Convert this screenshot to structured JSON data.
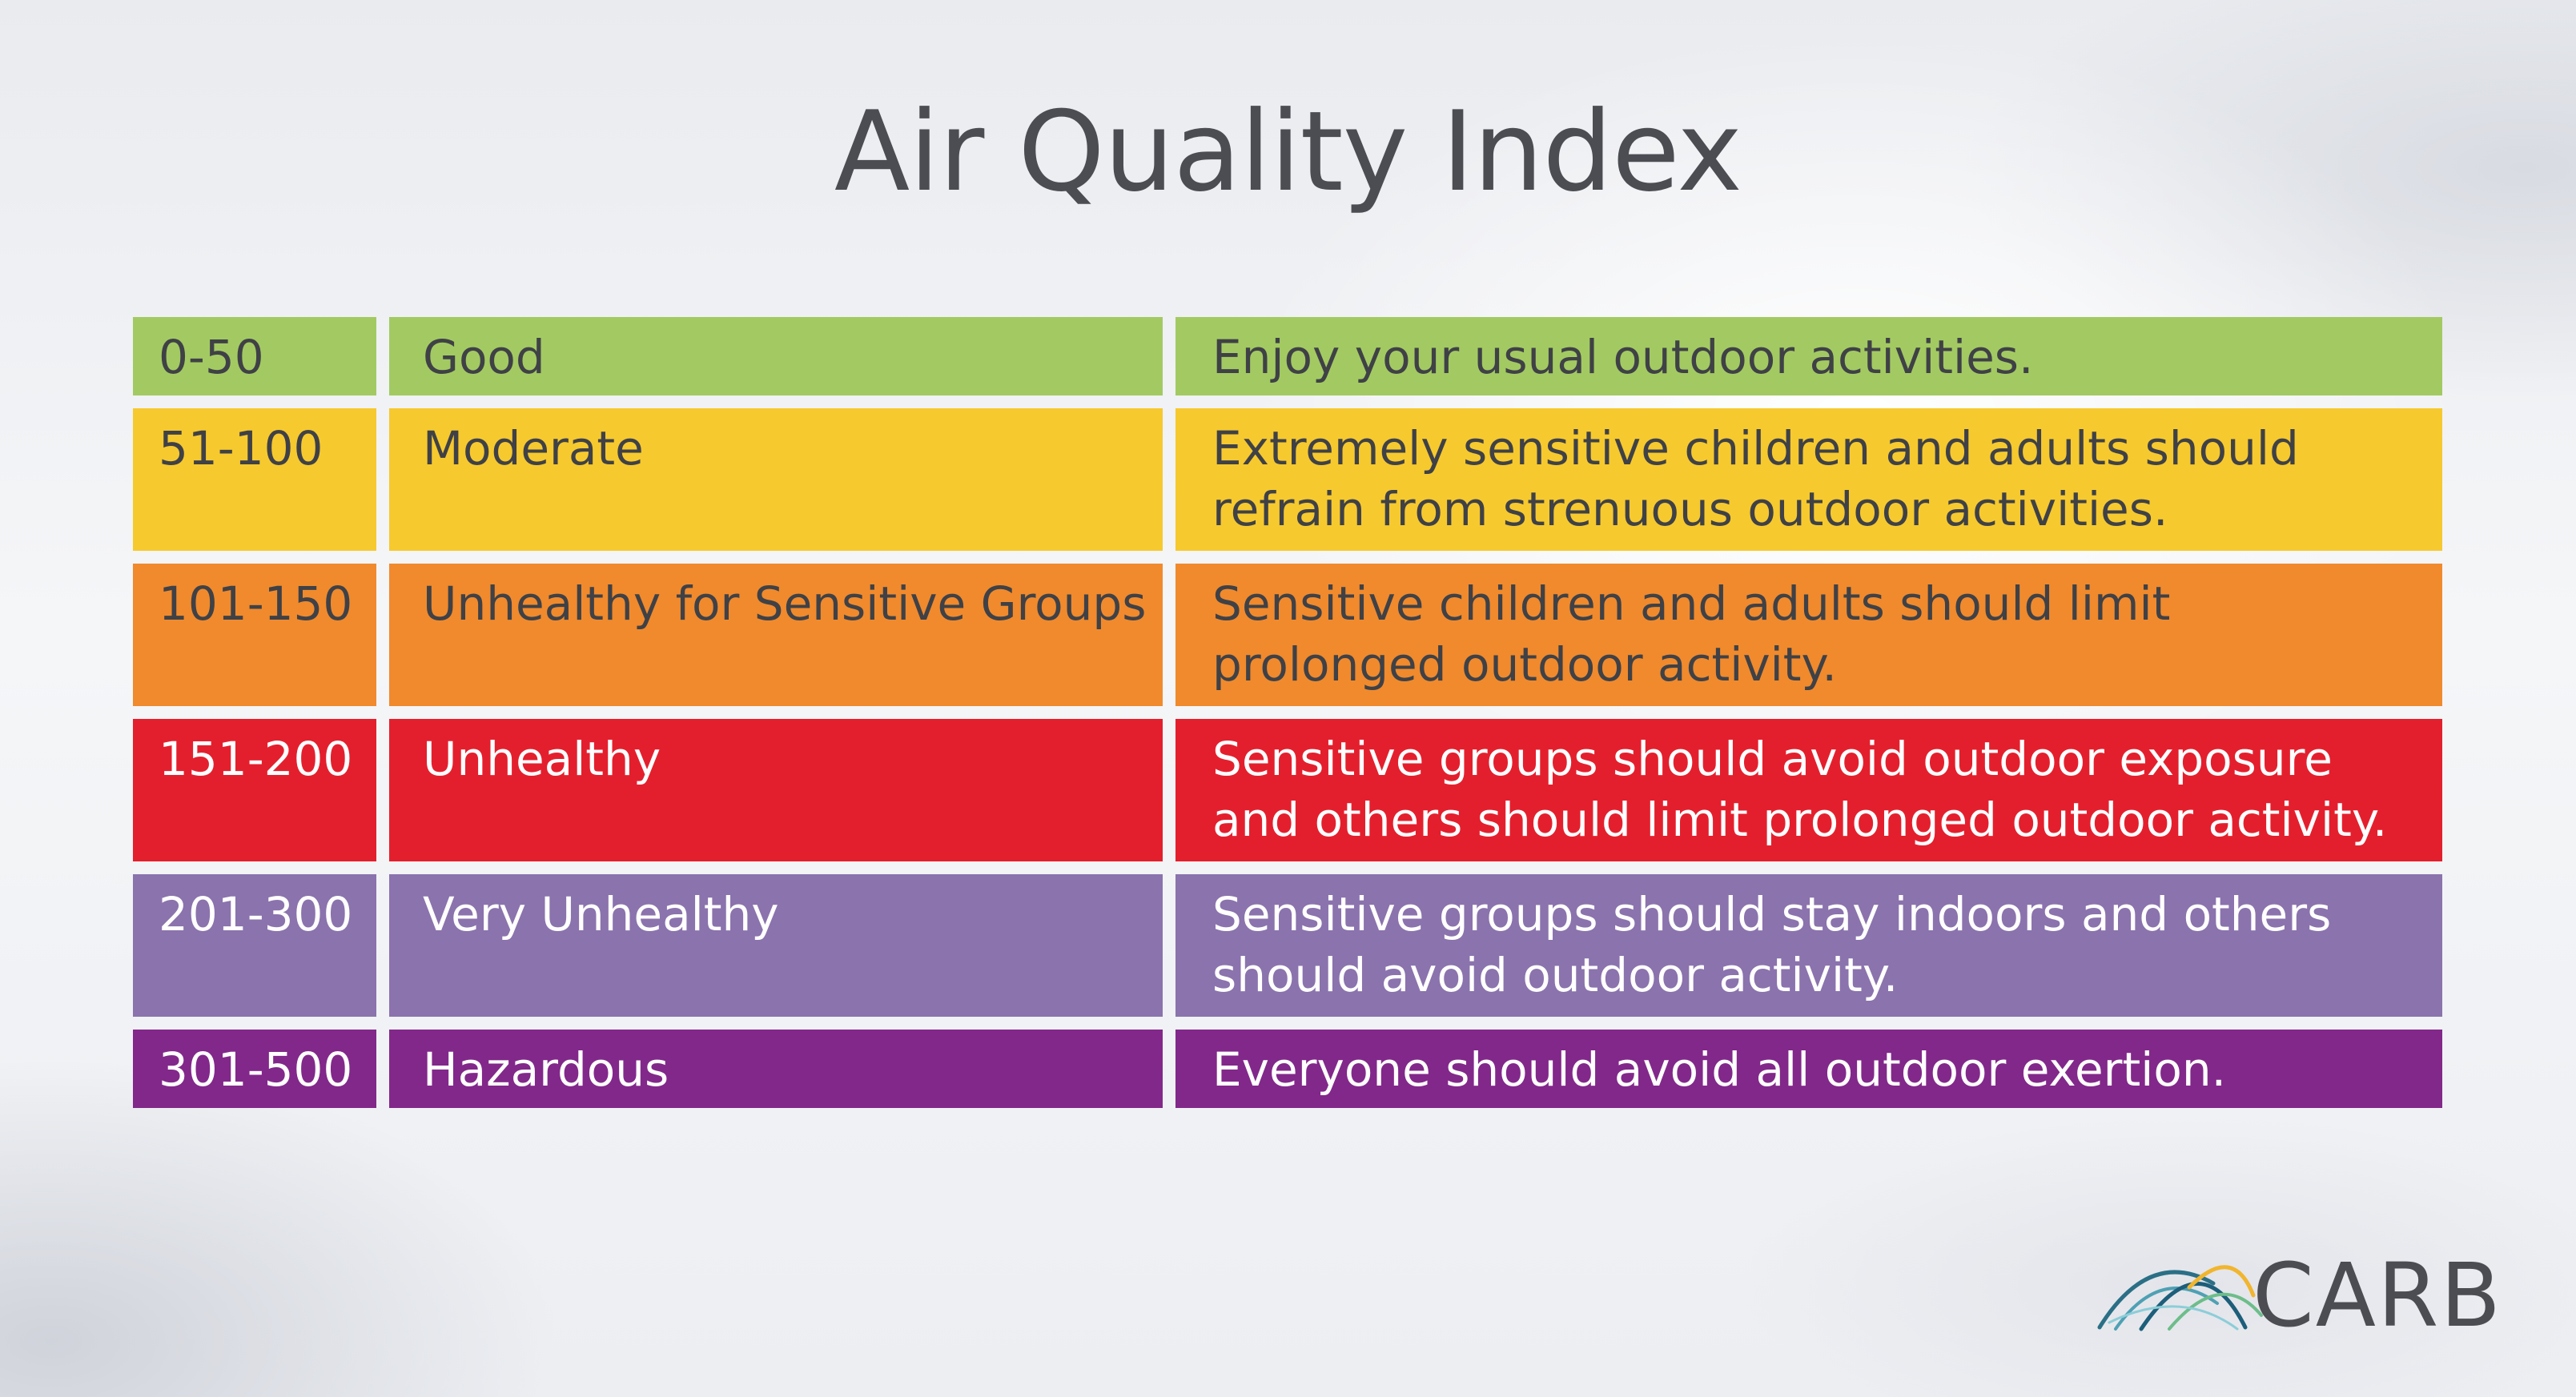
{
  "title": "Air Quality Index",
  "rows": [
    {
      "range": "0-50",
      "level": "Good",
      "desc": [
        "Enjoy your usual outdoor activities."
      ],
      "color": "#a3ca62",
      "text_color": "#3f4146"
    },
    {
      "range": "51-100",
      "level": "Moderate",
      "desc": [
        "Extremely sensitive children and adults should",
        "refrain from strenuous outdoor activities."
      ],
      "color": "#f6c92e",
      "text_color": "#3f4146"
    },
    {
      "range": "101-150",
      "level": "Unhealthy for Sensitive Groups",
      "desc": [
        "Sensitive children and adults should limit",
        "prolonged outdoor activity."
      ],
      "color": "#f08a2d",
      "text_color": "#3f4146"
    },
    {
      "range": "151-200",
      "level": "Unhealthy",
      "desc": [
        "Sensitive groups should avoid outdoor exposure",
        "and others should limit prolonged outdoor activity."
      ],
      "color": "#e41f2d",
      "text_color": "#ffffff"
    },
    {
      "range": "201-300",
      "level": "Very Unhealthy",
      "desc": [
        "Sensitive groups should stay indoors and others",
        "should avoid outdoor activity."
      ],
      "color": "#8b73ad",
      "text_color": "#ffffff"
    },
    {
      "range": "301-500",
      "level": "Hazardous",
      "desc": [
        "Everyone should avoid all outdoor exertion."
      ],
      "color": "#82288a",
      "text_color": "#ffffff"
    }
  ],
  "logo": {
    "text": "CARB",
    "icon": "carb-arcs-icon"
  }
}
